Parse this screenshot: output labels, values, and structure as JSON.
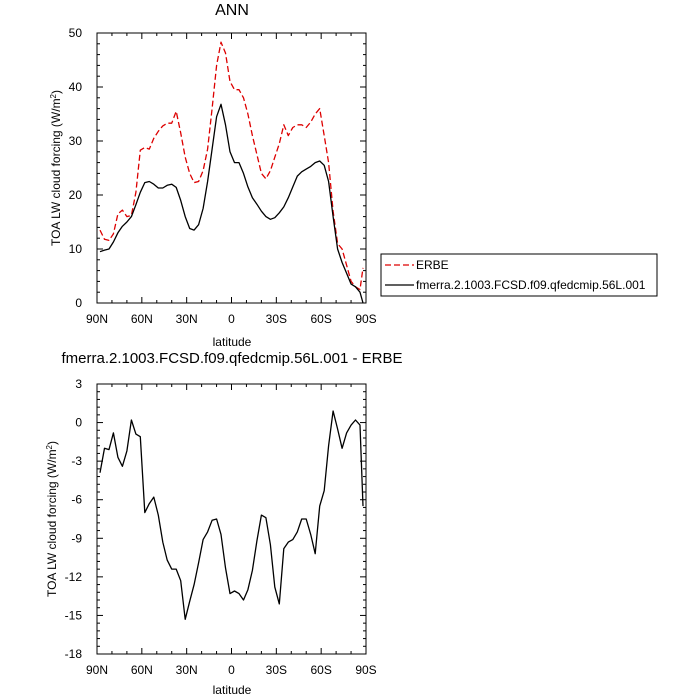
{
  "chart_data": [
    {
      "type": "line",
      "title": "ANN",
      "xlabel": "latitude",
      "ylabel": "TOA LW cloud forcing (W/m",
      "ylabel_sup": "2",
      "ylabel_end": ")",
      "xlim": [
        90,
        -90
      ],
      "ylim": [
        0,
        50
      ],
      "xticks": [
        90,
        60,
        30,
        0,
        -30,
        -60,
        -90
      ],
      "xtick_labels": [
        "90N",
        "60N",
        "30N",
        "0",
        "30S",
        "60S",
        "90S"
      ],
      "yticks": [
        0,
        10,
        20,
        30,
        40,
        50
      ],
      "ytick_labels": [
        "0",
        "10",
        "20",
        "30",
        "40",
        "50"
      ],
      "legend_position": "outside right, lower",
      "series": [
        {
          "name": "ERBE",
          "color": "#dd0000",
          "dash": "dashed",
          "x": [
            88,
            85,
            82,
            79,
            76,
            73,
            70,
            67,
            64,
            61,
            58,
            55,
            52,
            49,
            46,
            43,
            40,
            37,
            34,
            31,
            28,
            25,
            22,
            19,
            16,
            13,
            10,
            7,
            4,
            1,
            -2,
            -5,
            -8,
            -11,
            -14,
            -17,
            -20,
            -23,
            -26,
            -29,
            -32,
            -35,
            -38,
            -41,
            -44,
            -47,
            -50,
            -53,
            -56,
            -59,
            -62,
            -65,
            -68,
            -71,
            -74,
            -77,
            -80,
            -83,
            -86,
            -88
          ],
          "y": [
            13.5,
            11.8,
            11.6,
            12.8,
            16.5,
            17.2,
            16,
            16.2,
            20.5,
            28.3,
            28.8,
            28.5,
            30.5,
            31.8,
            32.8,
            33.3,
            33.3,
            35.5,
            31.5,
            27,
            24,
            22.3,
            22.5,
            24.5,
            28.5,
            36,
            44,
            48.3,
            46.3,
            41,
            39.5,
            39.5,
            38,
            35,
            31,
            27.5,
            24,
            23,
            24.5,
            27,
            29.5,
            33,
            31,
            32.5,
            33,
            33,
            32.5,
            33.5,
            35,
            36,
            31,
            26,
            17,
            11,
            10,
            7,
            4,
            3,
            2.5,
            6.5
          ]
        },
        {
          "name": "fmerra.2.1003.FCSD.f09.qfedcmip.56L.001",
          "color": "#000000",
          "dash": "solid",
          "x": [
            88,
            85,
            82,
            79,
            76,
            73,
            70,
            67,
            64,
            61,
            58,
            55,
            52,
            49,
            46,
            43,
            40,
            37,
            34,
            31,
            28,
            25,
            22,
            19,
            16,
            13,
            10,
            7,
            4,
            1,
            -2,
            -5,
            -8,
            -11,
            -14,
            -17,
            -20,
            -23,
            -26,
            -29,
            -32,
            -35,
            -38,
            -41,
            -44,
            -47,
            -50,
            -53,
            -56,
            -59,
            -62,
            -65,
            -68,
            -71,
            -74,
            -77,
            -80,
            -83,
            -86,
            -88
          ],
          "y": [
            9.5,
            9.8,
            10,
            11.3,
            13,
            14.2,
            15,
            16,
            18.2,
            20.5,
            22.3,
            22.5,
            22,
            21.3,
            21.3,
            21.8,
            22,
            21.4,
            19,
            16,
            13.8,
            13.5,
            14.5,
            17.5,
            22.5,
            28.5,
            34.5,
            36.8,
            33,
            28,
            26,
            26,
            24,
            21.5,
            19.5,
            18.3,
            17,
            16,
            15.5,
            15.8,
            16.7,
            17.8,
            19.5,
            21.5,
            23.5,
            24.3,
            24.8,
            25.3,
            26,
            26.3,
            25.5,
            22.5,
            16,
            10,
            7.5,
            5.5,
            3.5,
            3,
            2,
            0
          ]
        }
      ]
    },
    {
      "type": "line",
      "title": "fmerra.2.1003.FCSD.f09.qfedcmip.56L.001 - ERBE",
      "xlabel": "latitude",
      "ylabel": "TOA LW cloud forcing (W/m",
      "ylabel_sup": "2",
      "ylabel_end": ")",
      "xlim": [
        90,
        -90
      ],
      "ylim": [
        -18,
        3
      ],
      "xticks": [
        90,
        60,
        30,
        0,
        -30,
        -60,
        -90
      ],
      "xtick_labels": [
        "90N",
        "60N",
        "30N",
        "0",
        "30S",
        "60S",
        "90S"
      ],
      "yticks": [
        -18,
        -15,
        -12,
        -9,
        -6,
        -3,
        0,
        3
      ],
      "ytick_labels": [
        "-18",
        "-15",
        "-12",
        "-9",
        "-6",
        "-3",
        "0",
        "3"
      ],
      "series": [
        {
          "color": "#000000",
          "dash": "solid",
          "x": [
            88,
            85,
            82,
            79,
            76,
            73,
            70,
            67,
            64,
            61,
            58,
            55,
            52,
            49,
            46,
            43,
            40,
            37,
            34,
            31,
            28,
            25,
            22,
            19,
            16,
            13,
            10,
            7,
            4,
            1,
            -2,
            -5,
            -8,
            -11,
            -14,
            -17,
            -20,
            -23,
            -26,
            -29,
            -32,
            -35,
            -38,
            -41,
            -44,
            -47,
            -50,
            -53,
            -56,
            -59,
            -62,
            -65,
            -68,
            -71,
            -74,
            -77,
            -80,
            -83,
            -86,
            -88
          ],
          "y": [
            -3.9,
            -2,
            -2.1,
            -0.8,
            -2.7,
            -3.4,
            -2.2,
            0.2,
            -0.9,
            -1.1,
            -7.0,
            -6.3,
            -5.8,
            -7.2,
            -9.3,
            -10.7,
            -11.4,
            -11.4,
            -12.3,
            -15.3,
            -13.9,
            -12.6,
            -10.9,
            -9.1,
            -8.5,
            -7.6,
            -7.5,
            -8.7,
            -11.3,
            -13.3,
            -13.1,
            -13.3,
            -13.8,
            -13.0,
            -11.5,
            -9.2,
            -7.2,
            -7.4,
            -9.5,
            -12.8,
            -14.1,
            -9.8,
            -9.3,
            -9.1,
            -8.5,
            -7.5,
            -7.5,
            -8.7,
            -10.2,
            -6.5,
            -5.3,
            -1.8,
            0.9,
            -0.5,
            -2.0,
            -0.8,
            -0.2,
            0.2,
            -0.2,
            -6.5
          ]
        }
      ]
    }
  ]
}
